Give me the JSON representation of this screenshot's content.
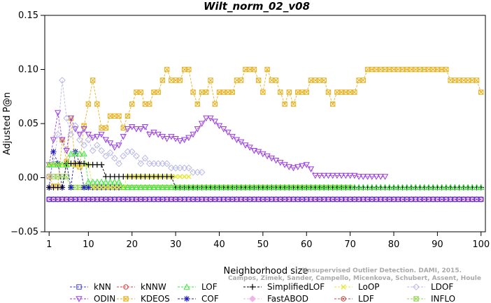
{
  "chart_data": {
    "type": "line",
    "title": "Wilt_norm_02_v08",
    "xlabel": "Neighborhood size",
    "ylabel": "Adjusted P@n",
    "xlim": [
      0,
      101
    ],
    "ylim": [
      -0.05,
      0.15
    ],
    "xticks": [
      1,
      10,
      20,
      30,
      40,
      50,
      60,
      70,
      80,
      90,
      100
    ],
    "yticks": [
      -0.05,
      0.0,
      0.05,
      0.1,
      0.15
    ],
    "ytick_labels": [
      "−0.05",
      "0.00",
      "0.05",
      "0.10",
      "0.15"
    ],
    "grid": false,
    "legend_position": "bottom",
    "credit": [
      "Campos, Zimek, Sander, Campello, Micenkova, Schubert, Assent, Houle",
      "Unsupervised Outlier Detection. DAMI, 2015."
    ],
    "series": [
      {
        "name": "kNN",
        "color": "#3a3ae6",
        "marker": "square",
        "range": [
          1,
          100
        ],
        "segments": [
          [
            1,
            100,
            -0.02
          ]
        ]
      },
      {
        "name": "kNNW",
        "color": "#e63a3a",
        "marker": "circle",
        "range": [
          1,
          100
        ],
        "segments": [
          [
            1,
            100,
            -0.02
          ]
        ]
      },
      {
        "name": "LOF",
        "color": "#3ae63a",
        "marker": "triangle-up",
        "range": [
          1,
          100
        ],
        "segments": [
          [
            1,
            5,
            0.012
          ],
          [
            6,
            9,
            0.022
          ],
          [
            10,
            17,
            -0.004
          ],
          [
            18,
            70,
            -0.009
          ],
          [
            71,
            100,
            -0.009
          ]
        ]
      },
      {
        "name": "SimplifiedLOF",
        "color": "#000000",
        "marker": "plus",
        "range": [
          1,
          100
        ],
        "segments": [
          [
            1,
            4,
            -0.009
          ],
          [
            5,
            9,
            0.013
          ],
          [
            10,
            13,
            0.012
          ],
          [
            14,
            29,
            0.001
          ],
          [
            30,
            69,
            -0.009
          ],
          [
            70,
            100,
            -0.009
          ]
        ]
      },
      {
        "name": "LoOP",
        "color": "#e6e63a",
        "marker": "x",
        "range": [
          1,
          33
        ],
        "segments": [
          [
            1,
            10,
            0.012
          ],
          [
            11,
            18,
            -0.009
          ],
          [
            19,
            33,
            0.001
          ]
        ]
      },
      {
        "name": "LDOF",
        "color": "#b8b8e6",
        "marker": "diamond",
        "range": [
          1,
          36
        ],
        "values": [
          [
            1,
            0.001
          ],
          [
            2,
            0.013
          ],
          [
            3,
            0.04
          ],
          [
            4,
            0.09
          ],
          [
            5,
            0.055
          ],
          [
            6,
            0.04
          ],
          [
            7,
            0.048
          ],
          [
            8,
            0.035
          ],
          [
            9,
            0.03
          ],
          [
            10,
            0.035
          ],
          [
            11,
            0.025
          ],
          [
            12,
            0.03
          ],
          [
            13,
            0.025
          ],
          [
            14,
            0.02
          ],
          [
            15,
            0.023
          ],
          [
            16,
            0.018
          ],
          [
            17,
            0.013
          ],
          [
            18,
            0.02
          ],
          [
            19,
            0.024
          ],
          [
            20,
            0.024
          ],
          [
            21,
            0.02
          ],
          [
            22,
            0.013
          ],
          [
            23,
            0.018
          ],
          [
            24,
            0.013
          ],
          [
            25,
            0.013
          ],
          [
            26,
            0.013
          ],
          [
            27,
            0.013
          ],
          [
            28,
            0.013
          ],
          [
            29,
            0.009
          ],
          [
            30,
            0.009
          ],
          [
            31,
            0.009
          ],
          [
            32,
            0.009
          ],
          [
            33,
            0.009
          ],
          [
            34,
            0.005
          ],
          [
            35,
            0.005
          ],
          [
            36,
            0.005
          ]
        ]
      },
      {
        "name": "ODIN",
        "color": "#9a3ae6",
        "marker": "triangle-down",
        "range": [
          1,
          78
        ],
        "values": [
          [
            1,
            0.012
          ],
          [
            2,
            0.035
          ],
          [
            3,
            0.06
          ],
          [
            4,
            0.035
          ],
          [
            5,
            0.025
          ],
          [
            6,
            0.055
          ],
          [
            7,
            0.045
          ],
          [
            8,
            0.04
          ],
          [
            9,
            0.045
          ],
          [
            10,
            0.04
          ],
          [
            11,
            0.037
          ],
          [
            12,
            0.038
          ],
          [
            13,
            0.04
          ],
          [
            14,
            0.035
          ],
          [
            15,
            0.032
          ],
          [
            16,
            0.028
          ],
          [
            17,
            0.03
          ],
          [
            18,
            0.038
          ],
          [
            19,
            0.045
          ],
          [
            20,
            0.047
          ],
          [
            21,
            0.045
          ],
          [
            22,
            0.045
          ],
          [
            23,
            0.047
          ],
          [
            24,
            0.04
          ],
          [
            25,
            0.042
          ],
          [
            26,
            0.04
          ],
          [
            27,
            0.038
          ],
          [
            28,
            0.036
          ],
          [
            29,
            0.038
          ],
          [
            30,
            0.036
          ],
          [
            31,
            0.034
          ],
          [
            32,
            0.035
          ],
          [
            33,
            0.037
          ],
          [
            34,
            0.04
          ],
          [
            35,
            0.045
          ],
          [
            36,
            0.05
          ],
          [
            37,
            0.055
          ],
          [
            38,
            0.055
          ],
          [
            39,
            0.052
          ],
          [
            40,
            0.048
          ],
          [
            41,
            0.045
          ],
          [
            42,
            0.042
          ],
          [
            43,
            0.038
          ],
          [
            44,
            0.035
          ],
          [
            45,
            0.033
          ],
          [
            46,
            0.03
          ],
          [
            47,
            0.028
          ],
          [
            48,
            0.025
          ],
          [
            49,
            0.024
          ],
          [
            50,
            0.022
          ],
          [
            51,
            0.02
          ],
          [
            52,
            0.018
          ],
          [
            53,
            0.016
          ],
          [
            54,
            0.014
          ],
          [
            55,
            0.012
          ],
          [
            56,
            0.01
          ],
          [
            57,
            0.009
          ],
          [
            58,
            0.01
          ],
          [
            59,
            0.011
          ],
          [
            60,
            0.012
          ],
          [
            61,
            0.008
          ],
          [
            62,
            0.002
          ],
          [
            63,
            0.002
          ],
          [
            64,
            0.002
          ],
          [
            65,
            0.002
          ],
          [
            66,
            0.002
          ],
          [
            67,
            0.002
          ],
          [
            68,
            0.002
          ],
          [
            69,
            0.002
          ],
          [
            70,
            0.002
          ],
          [
            71,
            0.002
          ],
          [
            72,
            0.001
          ],
          [
            73,
            0.001
          ],
          [
            74,
            0.001
          ],
          [
            75,
            0.001
          ],
          [
            76,
            0.001
          ],
          [
            77,
            0.001
          ],
          [
            78,
            0.001
          ]
        ]
      },
      {
        "name": "KDEOS",
        "color": "#e6b01e",
        "marker": "square-x",
        "range": [
          1,
          100
        ],
        "values": [
          [
            1,
            0.001
          ],
          [
            2,
            -0.008
          ],
          [
            3,
            -0.008
          ],
          [
            4,
            0.035
          ],
          [
            5,
            0.015
          ],
          [
            6,
            0.055
          ],
          [
            7,
            0.012
          ],
          [
            8,
            0.01
          ],
          [
            9,
            0.048
          ],
          [
            10,
            0.068
          ],
          [
            11,
            0.09
          ],
          [
            12,
            0.068
          ],
          [
            13,
            0.046
          ],
          [
            14,
            0.046
          ],
          [
            15,
            0.057
          ],
          [
            16,
            0.057
          ],
          [
            17,
            0.057
          ],
          [
            18,
            0.046
          ],
          [
            19,
            0.057
          ],
          [
            20,
            0.068
          ],
          [
            21,
            0.079
          ],
          [
            22,
            0.079
          ],
          [
            23,
            0.068
          ],
          [
            24,
            0.068
          ],
          [
            25,
            0.079
          ],
          [
            26,
            0.079
          ],
          [
            27,
            0.09
          ],
          [
            28,
            0.1
          ],
          [
            29,
            0.09
          ],
          [
            30,
            0.09
          ],
          [
            31,
            0.09
          ],
          [
            32,
            0.1
          ],
          [
            33,
            0.1
          ],
          [
            34,
            0.079
          ],
          [
            35,
            0.068
          ],
          [
            36,
            0.079
          ],
          [
            37,
            0.079
          ],
          [
            38,
            0.09
          ],
          [
            39,
            0.068
          ],
          [
            40,
            0.079
          ],
          [
            41,
            0.079
          ],
          [
            42,
            0.079
          ],
          [
            43,
            0.079
          ],
          [
            44,
            0.09
          ],
          [
            45,
            0.09
          ],
          [
            46,
            0.1
          ],
          [
            47,
            0.1
          ],
          [
            48,
            0.1
          ],
          [
            49,
            0.09
          ],
          [
            50,
            0.079
          ],
          [
            51,
            0.1
          ],
          [
            52,
            0.09
          ],
          [
            53,
            0.09
          ],
          [
            54,
            0.079
          ],
          [
            55,
            0.068
          ],
          [
            56,
            0.079
          ],
          [
            57,
            0.068
          ],
          [
            58,
            0.079
          ],
          [
            59,
            0.079
          ],
          [
            60,
            0.079
          ],
          [
            61,
            0.09
          ],
          [
            62,
            0.09
          ],
          [
            63,
            0.09
          ],
          [
            64,
            0.09
          ],
          [
            65,
            0.079
          ],
          [
            66,
            0.068
          ],
          [
            67,
            0.079
          ],
          [
            68,
            0.079
          ],
          [
            69,
            0.079
          ],
          [
            70,
            0.079
          ],
          [
            71,
            0.079
          ],
          [
            72,
            0.09
          ],
          [
            73,
            0.09
          ],
          [
            74,
            0.1
          ],
          [
            75,
            0.1
          ],
          [
            76,
            0.1
          ],
          [
            77,
            0.1
          ],
          [
            78,
            0.1
          ],
          [
            79,
            0.1
          ],
          [
            80,
            0.1
          ],
          [
            81,
            0.1
          ],
          [
            82,
            0.1
          ],
          [
            83,
            0.1
          ],
          [
            84,
            0.1
          ],
          [
            85,
            0.1
          ],
          [
            86,
            0.1
          ],
          [
            87,
            0.1
          ],
          [
            88,
            0.1
          ],
          [
            89,
            0.1
          ],
          [
            90,
            0.1
          ],
          [
            91,
            0.1
          ],
          [
            92,
            0.1
          ],
          [
            93,
            0.09
          ],
          [
            94,
            0.09
          ],
          [
            95,
            0.09
          ],
          [
            96,
            0.09
          ],
          [
            97,
            0.09
          ],
          [
            98,
            0.09
          ],
          [
            99,
            0.09
          ],
          [
            100,
            0.079
          ]
        ]
      },
      {
        "name": "COF",
        "color": "#1e1eb8",
        "marker": "asterisk",
        "range": [
          1,
          17
        ],
        "values": [
          [
            1,
            -0.009
          ],
          [
            2,
            0.024
          ],
          [
            3,
            0.013
          ],
          [
            4,
            -0.009
          ],
          [
            5,
            0.013
          ],
          [
            6,
            -0.009
          ],
          [
            7,
            0.024
          ],
          [
            8,
            0.013
          ],
          [
            9,
            -0.009
          ],
          [
            10,
            -0.009
          ],
          [
            11,
            -0.009
          ],
          [
            12,
            -0.009
          ],
          [
            13,
            -0.009
          ],
          [
            14,
            -0.009
          ],
          [
            15,
            -0.009
          ],
          [
            16,
            -0.009
          ],
          [
            17,
            -0.009
          ]
        ]
      },
      {
        "name": "FastABOD",
        "color": "#f0b4e6",
        "marker": "diamond-filled",
        "range": [
          1,
          100
        ],
        "segments": [
          [
            1,
            100,
            -0.02
          ]
        ]
      },
      {
        "name": "LDF",
        "color": "#c84646",
        "marker": "circle-dot",
        "range": [
          1,
          100
        ],
        "segments": [
          [
            1,
            100,
            -0.02
          ]
        ]
      },
      {
        "name": "INFLO",
        "color": "#8cd246",
        "marker": "square-dot",
        "range": [
          1,
          70
        ],
        "segments": [
          [
            1,
            5,
            0.001
          ],
          [
            6,
            9,
            -0.009
          ],
          [
            10,
            70,
            -0.009
          ]
        ]
      }
    ]
  }
}
